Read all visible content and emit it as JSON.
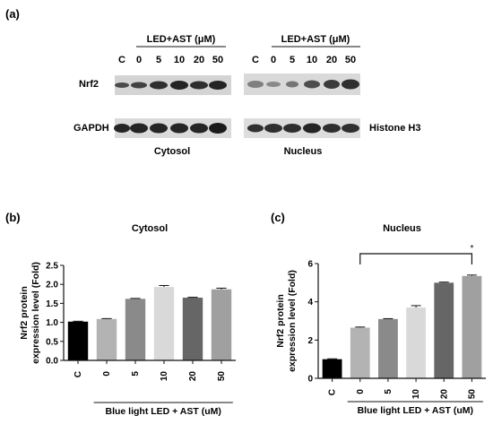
{
  "figure": {
    "panel_a_label": "(a)",
    "panel_b_label": "(b)",
    "panel_c_label": "(c)"
  },
  "blot": {
    "treatment_label": "LED+AST (μM)",
    "lanes": [
      "C",
      "0",
      "5",
      "10",
      "20",
      "50"
    ],
    "row_labels": [
      "Nrf2",
      "GAPDH"
    ],
    "right_label": "Histone H3",
    "fractions": [
      "Cytosol",
      "Nucleus"
    ],
    "band_colors": {
      "band": "#111111",
      "background": "#d7d7d7"
    }
  },
  "chart_data": [
    {
      "type": "bar",
      "title": "Cytosol",
      "categories": [
        "C",
        "0",
        "5",
        "10",
        "20",
        "50"
      ],
      "values": [
        1.02,
        1.09,
        1.62,
        1.93,
        1.65,
        1.87
      ],
      "errors": [
        0.01,
        0.01,
        0.01,
        0.04,
        0.01,
        0.03
      ],
      "ylabel": "Nrf2 protein expression level (Fold)",
      "xlabel": "Blue light LED + AST (uM)",
      "ylim": [
        0,
        2.5
      ],
      "yticks": [
        0.0,
        0.5,
        1.0,
        1.5,
        2.0,
        2.5
      ],
      "colors": [
        "#000000",
        "#b3b3b3",
        "#8a8a8a",
        "#d9d9d9",
        "#666666",
        "#a0a0a0"
      ]
    },
    {
      "type": "bar",
      "title": "Nucleus",
      "categories": [
        "C",
        "0",
        "5",
        "10",
        "20",
        "50"
      ],
      "values": [
        1.0,
        2.65,
        3.1,
        3.7,
        5.0,
        5.35
      ],
      "errors": [
        0.02,
        0.03,
        0.02,
        0.1,
        0.03,
        0.05
      ],
      "ylabel": "Nrf2 protein expression level (Fold)",
      "xlabel": "Blue light LED + AST (uM)",
      "ylim": [
        0,
        6
      ],
      "yticks": [
        0,
        2,
        4,
        6
      ],
      "significance": "*",
      "colors": [
        "#000000",
        "#b3b3b3",
        "#8a8a8a",
        "#d9d9d9",
        "#666666",
        "#a0a0a0"
      ]
    }
  ]
}
